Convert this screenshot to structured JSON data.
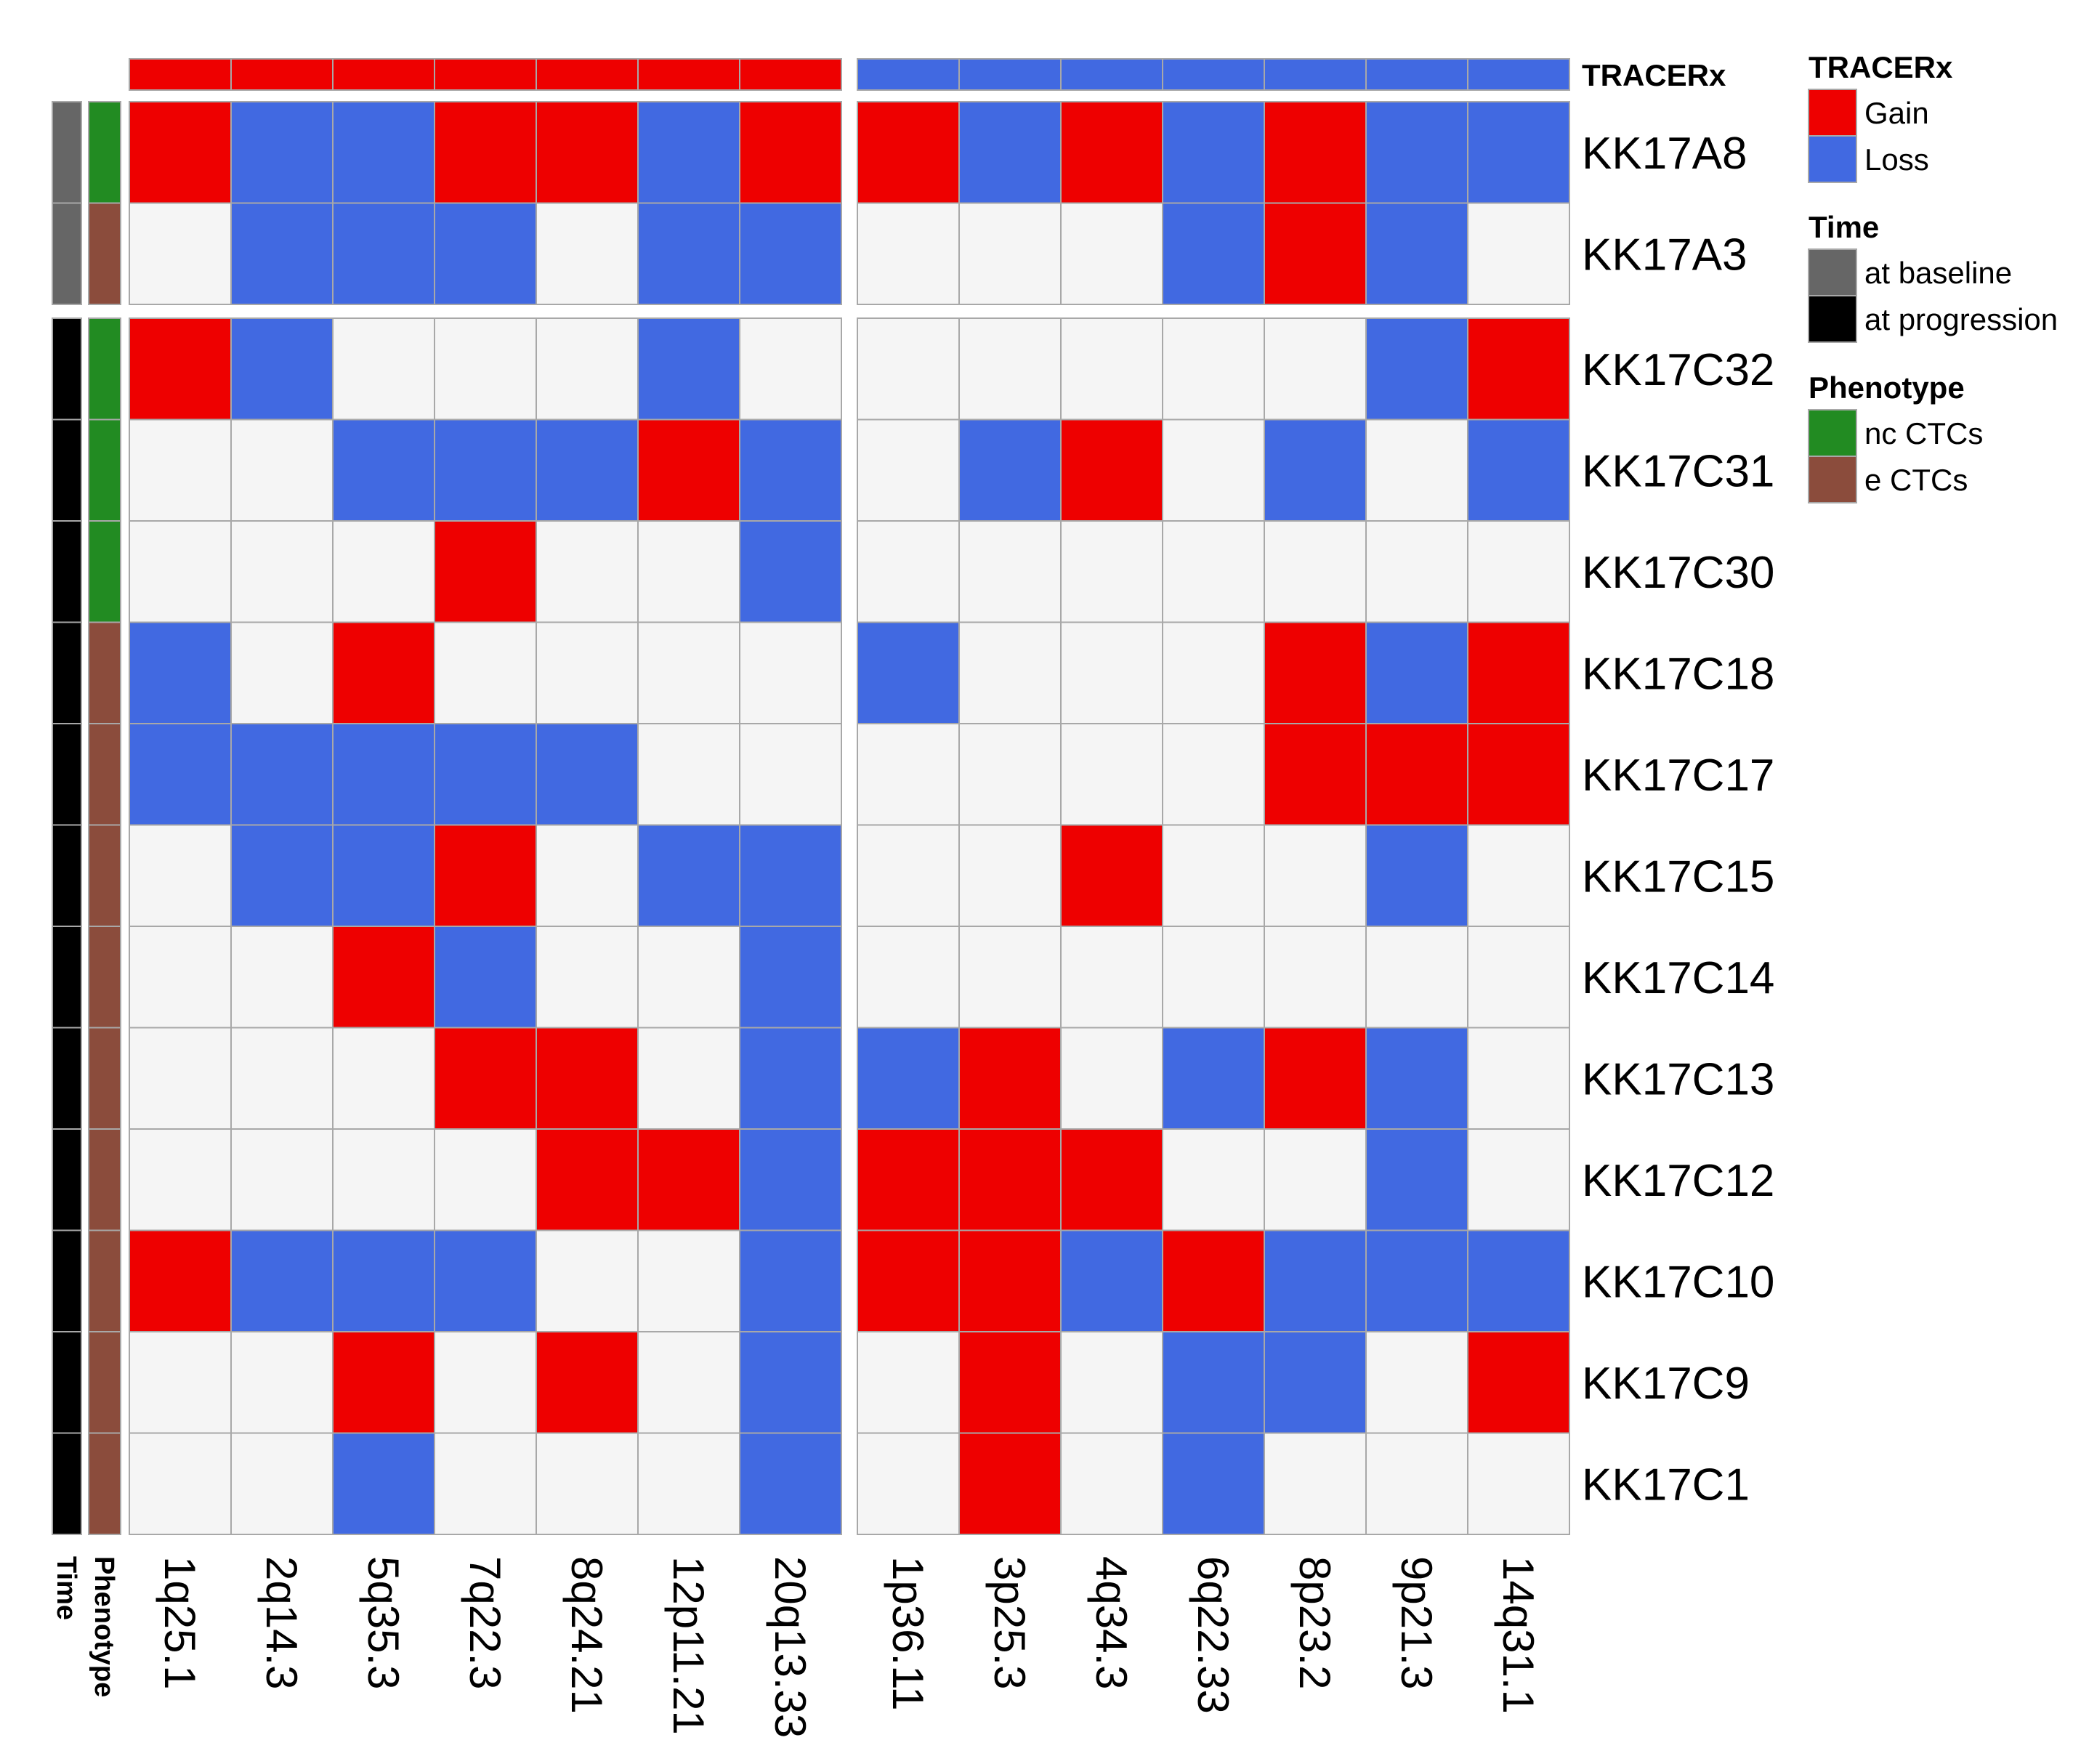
{
  "chart_data": {
    "type": "heatmap",
    "title": "",
    "col_groups": [
      {
        "anno": "Gain",
        "columns": [
          "1q25.1",
          "2q14.3",
          "5q35.3",
          "7q22.3",
          "8q24.21",
          "12p11.21",
          "20q13.33"
        ]
      },
      {
        "anno": "Loss",
        "columns": [
          "1p36.11",
          "3p25.3",
          "4q34.3",
          "6q22.33",
          "8p23.2",
          "9p21.3",
          "14q31.1"
        ]
      }
    ],
    "row_groups": [
      {
        "time": "at baseline",
        "rows": [
          {
            "label": "KK17A8",
            "phenotype": "nc CTCs",
            "values": [
              "G",
              "L",
              "L",
              "G",
              "G",
              "L",
              "G",
              "G",
              "L",
              "G",
              "L",
              "G",
              "L",
              "L"
            ]
          },
          {
            "label": "KK17A3",
            "phenotype": "e CTCs",
            "values": [
              "N",
              "L",
              "L",
              "L",
              "N",
              "L",
              "L",
              "N",
              "N",
              "N",
              "L",
              "G",
              "L",
              "N"
            ]
          }
        ]
      },
      {
        "time": "at progression",
        "rows": [
          {
            "label": "KK17C32",
            "phenotype": "nc CTCs",
            "values": [
              "G",
              "L",
              "N",
              "N",
              "N",
              "L",
              "N",
              "N",
              "N",
              "N",
              "N",
              "N",
              "L",
              "G"
            ]
          },
          {
            "label": "KK17C31",
            "phenotype": "nc CTCs",
            "values": [
              "N",
              "N",
              "L",
              "L",
              "L",
              "G",
              "L",
              "N",
              "L",
              "G",
              "N",
              "L",
              "N",
              "L"
            ]
          },
          {
            "label": "KK17C30",
            "phenotype": "nc CTCs",
            "values": [
              "N",
              "N",
              "N",
              "G",
              "N",
              "N",
              "L",
              "N",
              "N",
              "N",
              "N",
              "N",
              "N",
              "N"
            ]
          },
          {
            "label": "KK17C18",
            "phenotype": "e CTCs",
            "values": [
              "L",
              "N",
              "G",
              "N",
              "N",
              "N",
              "N",
              "L",
              "N",
              "N",
              "N",
              "G",
              "L",
              "G"
            ]
          },
          {
            "label": "KK17C17",
            "phenotype": "e CTCs",
            "values": [
              "L",
              "L",
              "L",
              "L",
              "L",
              "N",
              "N",
              "N",
              "N",
              "N",
              "N",
              "G",
              "G",
              "G"
            ]
          },
          {
            "label": "KK17C15",
            "phenotype": "e CTCs",
            "values": [
              "N",
              "L",
              "L",
              "G",
              "N",
              "L",
              "L",
              "N",
              "N",
              "G",
              "N",
              "N",
              "L",
              "N"
            ]
          },
          {
            "label": "KK17C14",
            "phenotype": "e CTCs",
            "values": [
              "N",
              "N",
              "G",
              "L",
              "N",
              "N",
              "L",
              "N",
              "N",
              "N",
              "N",
              "N",
              "N",
              "N"
            ]
          },
          {
            "label": "KK17C13",
            "phenotype": "e CTCs",
            "values": [
              "N",
              "N",
              "N",
              "G",
              "G",
              "N",
              "L",
              "L",
              "G",
              "N",
              "L",
              "G",
              "L",
              "N"
            ]
          },
          {
            "label": "KK17C12",
            "phenotype": "e CTCs",
            "values": [
              "N",
              "N",
              "N",
              "N",
              "G",
              "G",
              "L",
              "G",
              "G",
              "G",
              "N",
              "N",
              "L",
              "N"
            ]
          },
          {
            "label": "KK17C10",
            "phenotype": "e CTCs",
            "values": [
              "G",
              "L",
              "L",
              "L",
              "N",
              "N",
              "L",
              "G",
              "G",
              "L",
              "G",
              "L",
              "L",
              "L"
            ]
          },
          {
            "label": "KK17C9",
            "phenotype": "e CTCs",
            "values": [
              "N",
              "N",
              "G",
              "N",
              "G",
              "N",
              "L",
              "N",
              "G",
              "N",
              "L",
              "L",
              "N",
              "G"
            ]
          },
          {
            "label": "KK17C1",
            "phenotype": "e CTCs",
            "values": [
              "N",
              "N",
              "L",
              "N",
              "N",
              "N",
              "L",
              "N",
              "G",
              "N",
              "L",
              "N",
              "N",
              "N"
            ]
          }
        ]
      }
    ],
    "value_codes": {
      "G": "Gain",
      "L": "Loss",
      "N": "Neutral"
    },
    "annotations": {
      "top_name": "TRACERx",
      "left_names": [
        "Time",
        "Phenotype"
      ]
    },
    "legend": [
      {
        "title": "TRACERx",
        "items": [
          {
            "label": "Gain",
            "color": "#EE0000"
          },
          {
            "label": "Loss",
            "color": "#4169E1"
          }
        ]
      },
      {
        "title": "Time",
        "items": [
          {
            "label": "at baseline",
            "color": "#666666"
          },
          {
            "label": "at progression",
            "color": "#000000"
          }
        ]
      },
      {
        "title": "Phenotype",
        "items": [
          {
            "label": "nc CTCs",
            "color": "#228B22"
          },
          {
            "label": "e CTCs",
            "color": "#8B4C3C"
          }
        ]
      }
    ],
    "colors": {
      "Gain": "#EE0000",
      "Loss": "#4169E1",
      "Neutral": "#F5F5F5",
      "grid": "#A8A8A8"
    }
  }
}
